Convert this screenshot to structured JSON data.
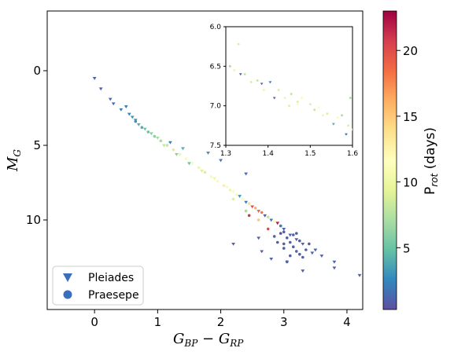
{
  "chart_data": [
    {
      "type": "scatter",
      "title": "",
      "xlabel": "G_BP − G_RP",
      "ylabel": "M_G",
      "xlim": [
        -0.75,
        4.25
      ],
      "ylim": [
        16.0,
        -4.0
      ],
      "y_inverted": true,
      "x_ticks": [
        "0",
        "1",
        "2",
        "3",
        "4"
      ],
      "y_ticks": [
        "0",
        "5",
        "10"
      ],
      "grid": false,
      "legend": {
        "placement": "lower-left",
        "entries": [
          {
            "name": "Pleiades",
            "marker": "triangle-down"
          },
          {
            "name": "Praesepe",
            "marker": "circle"
          }
        ]
      },
      "series": [
        {
          "name": "Pleiades",
          "marker": "triangle-down",
          "points": [
            [
              0.0,
              0.5,
              1.0
            ],
            [
              0.1,
              1.2,
              1.0
            ],
            [
              0.25,
              1.9,
              1.5
            ],
            [
              0.3,
              2.2,
              1.5
            ],
            [
              0.42,
              2.6,
              2.0
            ],
            [
              0.5,
              2.4,
              2.0
            ],
            [
              0.55,
              2.9,
              2.5
            ],
            [
              0.6,
              3.1,
              3.0
            ],
            [
              0.65,
              3.3,
              3.0
            ],
            [
              0.7,
              3.6,
              4.0
            ],
            [
              0.8,
              3.9,
              5.0
            ],
            [
              0.9,
              4.2,
              6.0
            ],
            [
              1.0,
              4.5,
              7.0
            ],
            [
              1.1,
              5.0,
              8.0
            ],
            [
              1.3,
              5.6,
              6.0
            ],
            [
              1.5,
              6.2,
              5.0
            ],
            [
              1.7,
              6.7,
              9.0
            ],
            [
              1.9,
              7.2,
              10.0
            ],
            [
              2.1,
              7.8,
              11.0
            ],
            [
              2.2,
              8.1,
              12.0
            ],
            [
              2.3,
              8.4,
              3.0
            ],
            [
              2.4,
              8.8,
              2.0
            ],
            [
              2.5,
              9.1,
              20.0
            ],
            [
              2.6,
              9.4,
              19.0
            ],
            [
              2.7,
              9.7,
              1.0
            ],
            [
              2.8,
              10.0,
              2.0
            ],
            [
              2.9,
              10.2,
              22.0
            ],
            [
              3.0,
              10.6,
              1.0
            ],
            [
              3.1,
              11.0,
              1.0
            ],
            [
              3.2,
              11.3,
              1.0
            ],
            [
              3.3,
              11.6,
              1.0
            ],
            [
              3.5,
              12.0,
              1.0
            ],
            [
              3.6,
              12.4,
              1.0
            ],
            [
              3.8,
              12.8,
              1.0
            ],
            [
              2.0,
              6.0,
              2.0
            ],
            [
              2.4,
              6.9,
              1.5
            ],
            [
              2.2,
              11.6,
              1.0
            ],
            [
              2.6,
              11.2,
              1.0
            ],
            [
              2.8,
              12.6,
              1.0
            ],
            [
              3.3,
              13.4,
              1.0
            ],
            [
              3.8,
              13.2,
              1.0
            ],
            [
              4.2,
              13.7,
              1.0
            ],
            [
              1.8,
              5.5,
              3.0
            ],
            [
              1.4,
              5.2,
              4.0
            ],
            [
              1.2,
              4.8,
              2.0
            ],
            [
              3.45,
              12.2,
              1.2
            ],
            [
              3.05,
              12.8,
              1.0
            ],
            [
              2.65,
              12.1,
              1.0
            ]
          ]
        },
        {
          "name": "Praesepe",
          "marker": "circle",
          "points": [
            [
              0.65,
              3.4,
              3.0
            ],
            [
              0.75,
              3.8,
              4.0
            ],
            [
              0.85,
              4.1,
              5.0
            ],
            [
              0.95,
              4.4,
              6.0
            ],
            [
              1.05,
              4.7,
              7.0
            ],
            [
              1.15,
              5.0,
              8.0
            ],
            [
              1.25,
              5.3,
              9.0
            ],
            [
              1.35,
              5.6,
              10.0
            ],
            [
              1.45,
              5.9,
              11.0
            ],
            [
              1.55,
              6.2,
              12.0
            ],
            [
              1.65,
              6.5,
              10.0
            ],
            [
              1.75,
              6.8,
              9.0
            ],
            [
              1.85,
              7.1,
              11.0
            ],
            [
              1.95,
              7.4,
              12.0
            ],
            [
              2.05,
              7.7,
              13.0
            ],
            [
              2.15,
              8.0,
              10.0
            ],
            [
              2.25,
              8.3,
              11.0
            ],
            [
              2.35,
              8.6,
              12.0
            ],
            [
              2.45,
              8.9,
              14.0
            ],
            [
              2.55,
              9.2,
              16.0
            ],
            [
              2.65,
              9.5,
              18.0
            ],
            [
              2.75,
              9.8,
              8.0
            ],
            [
              2.85,
              10.1,
              12.0
            ],
            [
              2.95,
              10.4,
              2.0
            ],
            [
              3.0,
              10.8,
              1.0
            ],
            [
              3.05,
              11.2,
              1.0
            ],
            [
              3.1,
              11.5,
              1.0
            ],
            [
              3.15,
              11.8,
              1.0
            ],
            [
              3.2,
              12.1,
              1.0
            ],
            [
              3.25,
              11.4,
              1.0
            ],
            [
              3.0,
              11.9,
              1.0
            ],
            [
              2.9,
              11.5,
              1.0
            ],
            [
              3.35,
              12.0,
              1.0
            ],
            [
              3.1,
              12.4,
              1.0
            ],
            [
              2.95,
              10.9,
              0.5
            ],
            [
              3.2,
              10.9,
              1.0
            ],
            [
              3.4,
              11.6,
              1.0
            ],
            [
              2.85,
              11.1,
              1.0
            ],
            [
              3.05,
              12.8,
              1.0
            ],
            [
              3.3,
              12.5,
              1.0
            ],
            [
              2.45,
              9.7,
              21.0
            ],
            [
              2.75,
              10.6,
              20.0
            ],
            [
              2.6,
              10.0,
              15.0
            ],
            [
              2.4,
              9.4,
              7.0
            ],
            [
              2.2,
              8.6,
              9.0
            ],
            [
              3.15,
              11.0,
              1.0
            ],
            [
              3.0,
              11.6,
              1.0
            ],
            [
              3.25,
              12.3,
              1.0
            ]
          ]
        }
      ],
      "colorbar": {
        "label": "P_rot (days)",
        "range": [
          0.3,
          23.0
        ],
        "ticks": [
          "5",
          "10",
          "15",
          "20"
        ],
        "colormap": "Spectral_r"
      }
    },
    {
      "type": "scatter",
      "title": "",
      "xlabel": "",
      "ylabel": "",
      "xlim": [
        1.3,
        1.6
      ],
      "ylim": [
        7.5,
        6.0
      ],
      "y_inverted": true,
      "x_ticks": [
        "1.3",
        "1.4",
        "1.5",
        "1.6"
      ],
      "y_ticks": [
        "6.0",
        "6.5",
        "7.0",
        "7.5"
      ],
      "series": [
        {
          "name": "Pleiades",
          "marker": "triangle-down",
          "points": [
            [
              1.335,
              6.6,
              1.0
            ],
            [
              1.385,
              6.72,
              1.5
            ],
            [
              1.415,
              6.9,
              1.0
            ],
            [
              1.555,
              7.23,
              4.0
            ],
            [
              1.585,
              7.36,
              1.5
            ],
            [
              1.405,
              6.7,
              2.0
            ]
          ]
        },
        {
          "name": "Praesepe",
          "marker": "circle",
          "points": [
            [
              1.31,
              6.5,
              7.0
            ],
            [
              1.33,
              6.22,
              9.0
            ],
            [
              1.345,
              6.6,
              8.0
            ],
            [
              1.36,
              6.7,
              9.0
            ],
            [
              1.375,
              6.68,
              8.0
            ],
            [
              1.39,
              6.8,
              10.0
            ],
            [
              1.425,
              6.8,
              9.0
            ],
            [
              1.44,
              6.9,
              10.0
            ],
            [
              1.455,
              6.85,
              8.0
            ],
            [
              1.47,
              6.95,
              9.0
            ],
            [
              1.48,
              6.9,
              11.0
            ],
            [
              1.5,
              6.98,
              9.0
            ],
            [
              1.51,
              7.05,
              8.0
            ],
            [
              1.53,
              7.12,
              10.0
            ],
            [
              1.54,
              7.1,
              9.0
            ],
            [
              1.565,
              7.15,
              11.0
            ],
            [
              1.575,
              7.12,
              7.0
            ],
            [
              1.59,
              7.25,
              9.0
            ],
            [
              1.595,
              6.9,
              7.0
            ],
            [
              1.6,
              7.3,
              10.0
            ],
            [
              1.32,
              6.55,
              10.0
            ],
            [
              1.45,
              7.0,
              9.0
            ],
            [
              1.52,
              7.02,
              12.0
            ],
            [
              1.47,
              6.98,
              11.0
            ]
          ]
        }
      ]
    }
  ],
  "labels": {
    "legend_pleiades": "Pleiades",
    "legend_praesepe": "Praesepe",
    "colorbar_label": "P_rot (days)"
  }
}
